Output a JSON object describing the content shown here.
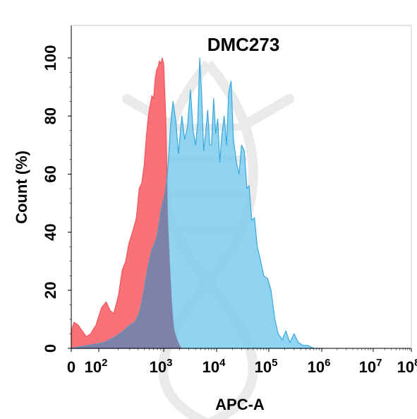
{
  "chart_data": {
    "type": "area",
    "title": "DMC273",
    "xlabel": "APC-A",
    "ylabel": "Count  (%)",
    "x_scale": "biexponential",
    "xlim": [
      -50,
      100000000
    ],
    "ylim": [
      0,
      105
    ],
    "x_ticks": [
      {
        "value": 0,
        "base": "0",
        "exp": ""
      },
      {
        "value": 100,
        "base": "10",
        "exp": "2"
      },
      {
        "value": 1000,
        "base": "10",
        "exp": "3"
      },
      {
        "value": 10000,
        "base": "10",
        "exp": "4"
      },
      {
        "value": 100000,
        "base": "10",
        "exp": "5"
      },
      {
        "value": 1000000,
        "base": "10",
        "exp": "6"
      },
      {
        "value": 10000000,
        "base": "10",
        "exp": "7"
      },
      {
        "value": 100000000,
        "base": "10",
        "exp": "8"
      }
    ],
    "y_ticks": [
      0,
      20,
      40,
      60,
      80,
      100
    ],
    "grid": false,
    "legend": "none",
    "series": [
      {
        "color": "#f4545c",
        "fill": "#f87278",
        "x": [
          -50,
          -20,
          0,
          10,
          25,
          40,
          55,
          70,
          90,
          110,
          130,
          150,
          170,
          200,
          230,
          260,
          290,
          320,
          350,
          380,
          420,
          460,
          500,
          540,
          580,
          620,
          660,
          700,
          740,
          780,
          820,
          860,
          900,
          950,
          1000,
          1050,
          1100,
          1150,
          1200,
          1300,
          1400,
          1500,
          1600,
          1800,
          2000,
          2200,
          2500
        ],
        "values": [
          3,
          4,
          6,
          9,
          8,
          6,
          4,
          5,
          8,
          14,
          16,
          13,
          12,
          18,
          27,
          30,
          36,
          39,
          42,
          45,
          55,
          57,
          63,
          73,
          80,
          84,
          87,
          86,
          93,
          96,
          97,
          99,
          98,
          100,
          98,
          88,
          78,
          60,
          45,
          30,
          18,
          10,
          6,
          3,
          1,
          0,
          0
        ]
      },
      {
        "color": "#38a8dc",
        "fill": "#7ecdf0",
        "x": [
          -50,
          0,
          60,
          120,
          180,
          240,
          300,
          360,
          420,
          480,
          540,
          600,
          660,
          720,
          780,
          840,
          900,
          960,
          1050,
          1150,
          1250,
          1350,
          1500,
          1700,
          1900,
          2200,
          2500,
          2800,
          3200,
          3600,
          4000,
          4400,
          4800,
          5200,
          5700,
          6200,
          6800,
          7400,
          8000,
          8800,
          9600,
          10500,
          11500,
          12500,
          14000,
          15500,
          17000,
          19000,
          21000,
          24000,
          27000,
          30000,
          34000,
          38000,
          42000,
          47000,
          53000,
          60000,
          70000,
          80000,
          95000,
          110000,
          130000,
          150000,
          180000,
          210000,
          250000,
          300000,
          360000,
          450000,
          550000,
          700000,
          900000,
          1100000
        ],
        "values": [
          0,
          0,
          1,
          2,
          4,
          6,
          8,
          9,
          12,
          18,
          25,
          30,
          34,
          36,
          38,
          42,
          47,
          50,
          53,
          58,
          67,
          77,
          85,
          78,
          67,
          80,
          72,
          76,
          89,
          75,
          70,
          78,
          100,
          88,
          68,
          74,
          82,
          70,
          70,
          86,
          74,
          79,
          64,
          73,
          80,
          70,
          88,
          92,
          72,
          64,
          60,
          70,
          68,
          55,
          56,
          44,
          45,
          35,
          30,
          25,
          24,
          20,
          10,
          5,
          3,
          6,
          2,
          5,
          2,
          1,
          1,
          0,
          0,
          0
        ]
      }
    ]
  },
  "watermark": {
    "shape": "dna-helix",
    "color": "#d9d9d9"
  }
}
